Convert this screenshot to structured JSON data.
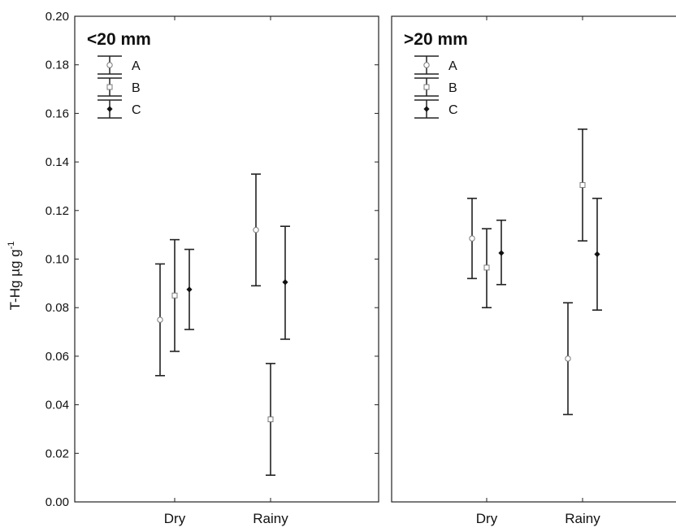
{
  "chart_data": {
    "type": "errorbar",
    "ylabel": "T-Hg µg g",
    "ylabel_superscript": "-1",
    "ylim": [
      0,
      0.2
    ],
    "yticks": [
      "0.00",
      "0.02",
      "0.04",
      "0.06",
      "0.08",
      "0.10",
      "0.12",
      "0.14",
      "0.16",
      "0.18",
      "0.20"
    ],
    "categories": [
      "Dry",
      "Rainy"
    ],
    "legend": {
      "placement": "top-left",
      "entries": [
        "A",
        "B",
        "C"
      ]
    },
    "markers": {
      "A": "open-circle",
      "B": "open-square",
      "C": "filled-diamond"
    },
    "panels": [
      {
        "title": "<20 mm",
        "series": [
          {
            "name": "A",
            "mean": [
              0.075,
              0.112
            ],
            "lower": [
              0.052,
              0.089
            ],
            "upper": [
              0.098,
              0.135
            ]
          },
          {
            "name": "B",
            "mean": [
              0.085,
              0.034
            ],
            "lower": [
              0.062,
              0.011
            ],
            "upper": [
              0.108,
              0.057
            ]
          },
          {
            "name": "C",
            "mean": [
              0.0875,
              0.0905
            ],
            "lower": [
              0.071,
              0.067
            ],
            "upper": [
              0.104,
              0.1135
            ]
          }
        ]
      },
      {
        "title": ">20 mm",
        "series": [
          {
            "name": "A",
            "mean": [
              0.1085,
              0.059
            ],
            "lower": [
              0.092,
              0.036
            ],
            "upper": [
              0.125,
              0.082
            ]
          },
          {
            "name": "B",
            "mean": [
              0.0965,
              0.1305
            ],
            "lower": [
              0.08,
              0.1075
            ],
            "upper": [
              0.1125,
              0.1535
            ]
          },
          {
            "name": "C",
            "mean": [
              0.1025,
              0.102
            ],
            "lower": [
              0.0895,
              0.079
            ],
            "upper": [
              0.116,
              0.125
            ]
          }
        ]
      }
    ]
  }
}
